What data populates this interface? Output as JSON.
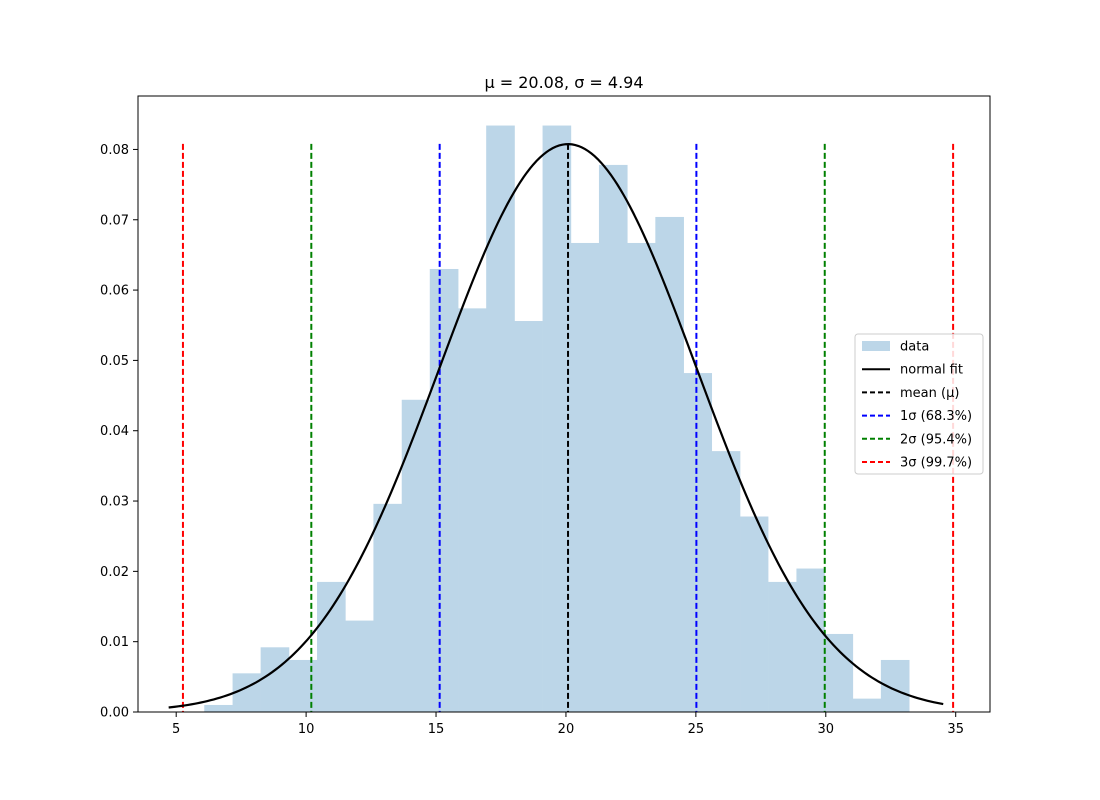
{
  "chart_data": {
    "type": "bar",
    "title": "μ = 20.08, σ = 4.94",
    "xlabel": "",
    "ylabel": "",
    "xlim": [
      3.53,
      36.32
    ],
    "ylim": [
      0,
      0.0876
    ],
    "xticks": [
      5,
      10,
      15,
      20,
      25,
      30,
      35
    ],
    "yticks": [
      0.0,
      0.01,
      0.02,
      0.03,
      0.04,
      0.05,
      0.06,
      0.07,
      0.08
    ],
    "ytick_labels": [
      "0.00",
      "0.01",
      "0.02",
      "0.03",
      "0.04",
      "0.05",
      "0.06",
      "0.07",
      "0.08"
    ],
    "grid": false,
    "legend_position": "center-right",
    "histogram": {
      "label": "data",
      "color": "#bcd6e8",
      "bin_edges": [
        6.08,
        7.17,
        8.25,
        9.34,
        10.42,
        11.51,
        12.59,
        13.68,
        14.76,
        15.85,
        16.93,
        18.02,
        19.1,
        20.19,
        21.27,
        22.36,
        23.44,
        24.53,
        25.61,
        26.7,
        27.78,
        28.87,
        29.95,
        31.04,
        32.12,
        33.21
      ],
      "densities": [
        0.001,
        0.0055,
        0.0092,
        0.0074,
        0.0185,
        0.013,
        0.0296,
        0.0444,
        0.063,
        0.0574,
        0.0834,
        0.0556,
        0.0834,
        0.0667,
        0.0778,
        0.0667,
        0.0704,
        0.0482,
        0.0371,
        0.0278,
        0.0185,
        0.0204,
        0.0111,
        0.0019,
        0.0074
      ]
    },
    "fit": {
      "label": "normal fit",
      "mu": 20.08,
      "sigma": 4.94,
      "x_range": [
        4.71,
        34.52
      ],
      "color": "#000000"
    },
    "vlines": [
      {
        "x": 20.08,
        "color": "#000000",
        "label": "mean (μ)"
      },
      {
        "x": 15.14,
        "color": "#0000ff",
        "label": "1σ (68.3%)"
      },
      {
        "x": 25.02,
        "color": "#0000ff",
        "label": ""
      },
      {
        "x": 10.2,
        "color": "#008000",
        "label": "2σ (95.4%)"
      },
      {
        "x": 29.96,
        "color": "#008000",
        "label": ""
      },
      {
        "x": 5.26,
        "color": "#ff0000",
        "label": "3σ (99.7%)"
      },
      {
        "x": 34.9,
        "color": "#ff0000",
        "label": ""
      }
    ],
    "vline_top": 0.0808,
    "legend": [
      {
        "label": "data",
        "kind": "patch",
        "color": "#bcd6e8"
      },
      {
        "label": "normal fit",
        "kind": "solid",
        "color": "#000000"
      },
      {
        "label": "mean (μ)",
        "kind": "dashed",
        "color": "#000000"
      },
      {
        "label": "1σ (68.3%)",
        "kind": "dashed",
        "color": "#0000ff"
      },
      {
        "label": "2σ (95.4%)",
        "kind": "dashed",
        "color": "#008000"
      },
      {
        "label": "3σ (99.7%)",
        "kind": "dashed",
        "color": "#ff0000"
      }
    ]
  }
}
